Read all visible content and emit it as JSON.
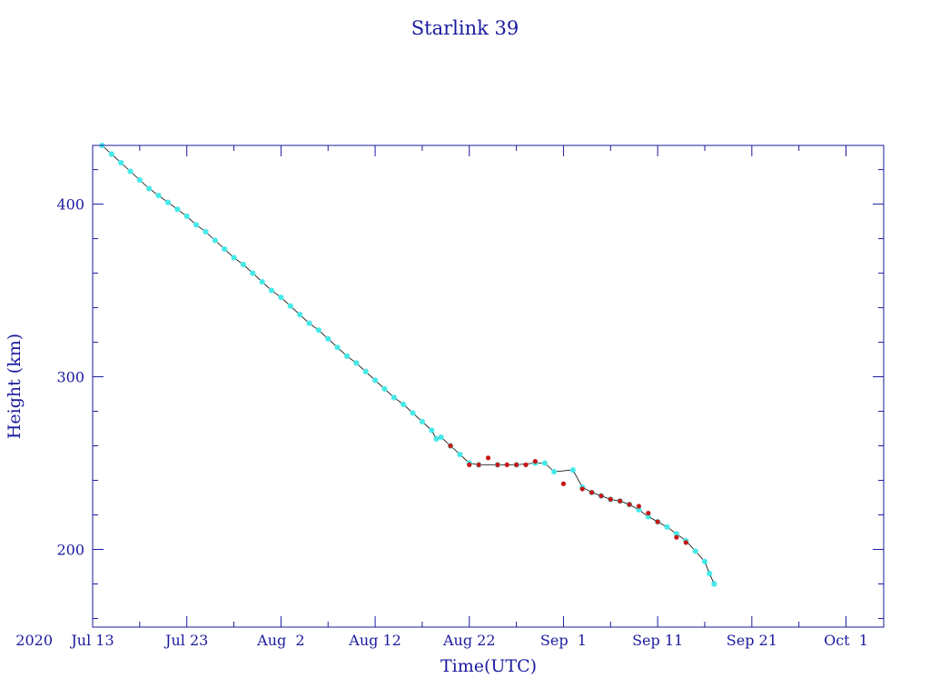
{
  "chart_data": {
    "type": "scatter",
    "title": "Starlink 39",
    "xlabel": "Time(UTC)",
    "ylabel": "Height (km)",
    "x_axis": {
      "type": "date",
      "range": [
        "2020-07-13",
        "2020-10-05"
      ],
      "ticks": [
        {
          "date": "2020-07-13",
          "label": "Jul 13",
          "prefix": "2020"
        },
        {
          "date": "2020-07-23",
          "label": "Jul 23"
        },
        {
          "date": "2020-08-02",
          "label": "Aug  2"
        },
        {
          "date": "2020-08-12",
          "label": "Aug 12"
        },
        {
          "date": "2020-08-22",
          "label": "Aug 22"
        },
        {
          "date": "2020-09-01",
          "label": "Sep  1"
        },
        {
          "date": "2020-09-11",
          "label": "Sep 11"
        },
        {
          "date": "2020-09-21",
          "label": "Sep 21"
        },
        {
          "date": "2020-10-01",
          "label": "Oct  1"
        }
      ]
    },
    "y_axis": {
      "range": [
        155,
        434
      ],
      "ticks": [
        200,
        300,
        400
      ]
    },
    "grid": false,
    "colors": {
      "axis": "#1a1a9e",
      "primary_marker": "#40e8e8",
      "secondary_marker": "#c81414",
      "line": "#000000"
    },
    "series": [
      {
        "marker": "cyan-star",
        "points": [
          [
            "2020-07-14",
            434
          ],
          [
            "2020-07-15",
            429
          ],
          [
            "2020-07-16",
            424
          ],
          [
            "2020-07-17",
            419
          ],
          [
            "2020-07-18",
            414
          ],
          [
            "2020-07-19",
            409
          ],
          [
            "2020-07-20",
            405
          ],
          [
            "2020-07-21",
            401
          ],
          [
            "2020-07-22",
            397
          ],
          [
            "2020-07-23",
            393
          ],
          [
            "2020-07-24",
            388
          ],
          [
            "2020-07-25",
            384
          ],
          [
            "2020-07-26",
            379
          ],
          [
            "2020-07-27",
            374
          ],
          [
            "2020-07-28",
            369
          ],
          [
            "2020-07-29",
            365
          ],
          [
            "2020-07-30",
            360
          ],
          [
            "2020-07-31",
            355
          ],
          [
            "2020-08-01",
            350
          ],
          [
            "2020-08-02",
            346
          ],
          [
            "2020-08-03",
            341
          ],
          [
            "2020-08-04",
            336
          ],
          [
            "2020-08-05",
            331
          ],
          [
            "2020-08-06",
            327
          ],
          [
            "2020-08-07",
            322
          ],
          [
            "2020-08-08",
            317
          ],
          [
            "2020-08-09",
            312
          ],
          [
            "2020-08-10",
            308
          ],
          [
            "2020-08-11",
            303
          ],
          [
            "2020-08-12",
            298
          ],
          [
            "2020-08-13",
            293
          ],
          [
            "2020-08-14",
            288
          ],
          [
            "2020-08-15",
            284
          ],
          [
            "2020-08-16",
            279
          ],
          [
            "2020-08-17",
            274
          ],
          [
            "2020-08-18",
            269
          ],
          [
            "2020-08-18T12:00",
            264
          ],
          [
            "2020-08-19",
            265
          ],
          [
            "2020-08-20",
            260
          ],
          [
            "2020-08-21",
            255
          ],
          [
            "2020-08-22",
            250
          ],
          [
            "2020-08-23",
            249
          ],
          [
            "2020-08-25",
            249
          ],
          [
            "2020-08-27",
            249
          ],
          [
            "2020-08-29",
            250
          ],
          [
            "2020-08-30",
            250
          ],
          [
            "2020-08-31",
            245
          ],
          [
            "2020-09-02",
            246
          ],
          [
            "2020-09-03",
            236
          ],
          [
            "2020-09-04",
            233
          ],
          [
            "2020-09-05",
            231
          ],
          [
            "2020-09-06",
            229
          ],
          [
            "2020-09-07",
            228
          ],
          [
            "2020-09-08",
            226
          ],
          [
            "2020-09-09",
            223
          ],
          [
            "2020-09-10",
            219
          ],
          [
            "2020-09-11",
            216
          ],
          [
            "2020-09-12",
            213
          ],
          [
            "2020-09-13",
            209
          ],
          [
            "2020-09-14",
            205
          ],
          [
            "2020-09-15",
            199
          ],
          [
            "2020-09-16",
            193
          ],
          [
            "2020-09-16T12:00",
            186
          ],
          [
            "2020-09-17",
            180
          ]
        ]
      },
      {
        "marker": "red-star",
        "points": [
          [
            "2020-08-20",
            260
          ],
          [
            "2020-08-22",
            249
          ],
          [
            "2020-08-23",
            249
          ],
          [
            "2020-08-24",
            253
          ],
          [
            "2020-08-25",
            249
          ],
          [
            "2020-08-26",
            249
          ],
          [
            "2020-08-27",
            249
          ],
          [
            "2020-08-28",
            249
          ],
          [
            "2020-08-29",
            251
          ],
          [
            "2020-09-01",
            238
          ],
          [
            "2020-09-03",
            235
          ],
          [
            "2020-09-04",
            233
          ],
          [
            "2020-09-05",
            231
          ],
          [
            "2020-09-06",
            229
          ],
          [
            "2020-09-07",
            228
          ],
          [
            "2020-09-08",
            226
          ],
          [
            "2020-09-09",
            225
          ],
          [
            "2020-09-10",
            221
          ],
          [
            "2020-09-11",
            216
          ],
          [
            "2020-09-13",
            207
          ],
          [
            "2020-09-14",
            204
          ]
        ]
      }
    ]
  }
}
